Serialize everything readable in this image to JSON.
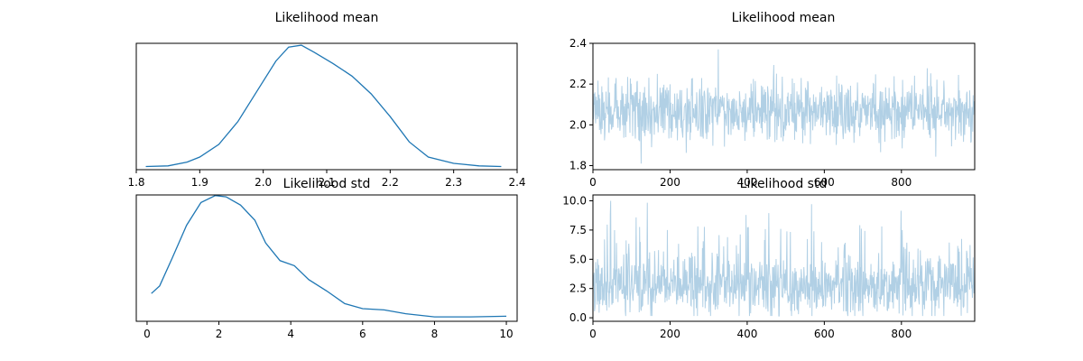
{
  "chart_data": [
    {
      "type": "line",
      "title": "Likelihood mean",
      "subplot": "density",
      "xlim": [
        1.8,
        2.4
      ],
      "ylim": [
        0,
        1
      ],
      "x_ticks": [
        1.8,
        1.9,
        2.0,
        2.1,
        2.2,
        2.3,
        2.4
      ],
      "x_tick_labels": [
        "1.8",
        "1.9",
        "2.0",
        "2.1",
        "2.2",
        "2.3",
        "2.4"
      ],
      "y_ticks_visible": false,
      "series": [
        {
          "color": "#1f77b4",
          "x": [
            1.815,
            1.85,
            1.88,
            1.9,
            1.93,
            1.96,
            1.99,
            2.02,
            2.04,
            2.06,
            2.08,
            2.11,
            2.14,
            2.17,
            2.2,
            2.23,
            2.26,
            2.3,
            2.34,
            2.375
          ],
          "y": [
            0.025,
            0.03,
            0.06,
            0.1,
            0.2,
            0.38,
            0.62,
            0.86,
            0.97,
            0.985,
            0.93,
            0.84,
            0.74,
            0.6,
            0.42,
            0.22,
            0.1,
            0.05,
            0.03,
            0.025
          ]
        }
      ]
    },
    {
      "type": "line",
      "title": "Likelihood mean",
      "subplot": "trace",
      "xlim": [
        0,
        990
      ],
      "ylim": [
        1.78,
        2.4
      ],
      "x_ticks": [
        0,
        200,
        400,
        600,
        800
      ],
      "x_tick_labels": [
        "0",
        "200",
        "400",
        "600",
        "800"
      ],
      "y_ticks": [
        1.8,
        2.0,
        2.2,
        2.4
      ],
      "y_tick_labels": [
        "1.8",
        "2.0",
        "2.2",
        "2.4"
      ],
      "n_samples": 990,
      "center": 2.07,
      "spread": 0.075,
      "series": [
        {
          "color": "#1f77b4",
          "alpha": 0.35
        }
      ]
    },
    {
      "type": "line",
      "title": "Likelihood std",
      "subplot": "density",
      "xlim": [
        -0.3,
        10.3
      ],
      "ylim": [
        0,
        1
      ],
      "x_ticks": [
        0,
        2,
        4,
        6,
        8,
        10
      ],
      "x_tick_labels": [
        "0",
        "2",
        "4",
        "6",
        "8",
        "10"
      ],
      "y_ticks_visible": false,
      "series": [
        {
          "color": "#1f77b4",
          "x": [
            0.12,
            0.35,
            0.7,
            1.1,
            1.5,
            1.9,
            2.2,
            2.6,
            3.0,
            3.3,
            3.7,
            4.1,
            4.5,
            5.0,
            5.5,
            6.0,
            6.6,
            7.2,
            8.0,
            9.0,
            10.0
          ],
          "y": [
            0.22,
            0.28,
            0.5,
            0.76,
            0.94,
            0.995,
            0.985,
            0.92,
            0.8,
            0.62,
            0.48,
            0.44,
            0.33,
            0.24,
            0.14,
            0.1,
            0.09,
            0.06,
            0.035,
            0.035,
            0.04
          ]
        }
      ]
    },
    {
      "type": "line",
      "title": "Likelihood std",
      "subplot": "trace",
      "xlim": [
        0,
        990
      ],
      "ylim": [
        -0.3,
        10.5
      ],
      "x_ticks": [
        0,
        200,
        400,
        600,
        800
      ],
      "x_tick_labels": [
        "0",
        "200",
        "400",
        "600",
        "800"
      ],
      "y_ticks": [
        0.0,
        2.5,
        5.0,
        7.5,
        10.0
      ],
      "y_tick_labels": [
        "0.0",
        "2.5",
        "5.0",
        "7.5",
        "10.0"
      ],
      "n_samples": 990,
      "center": 2.8,
      "spread": 1.3,
      "series": [
        {
          "color": "#1f77b4",
          "alpha": 0.35
        }
      ]
    }
  ]
}
